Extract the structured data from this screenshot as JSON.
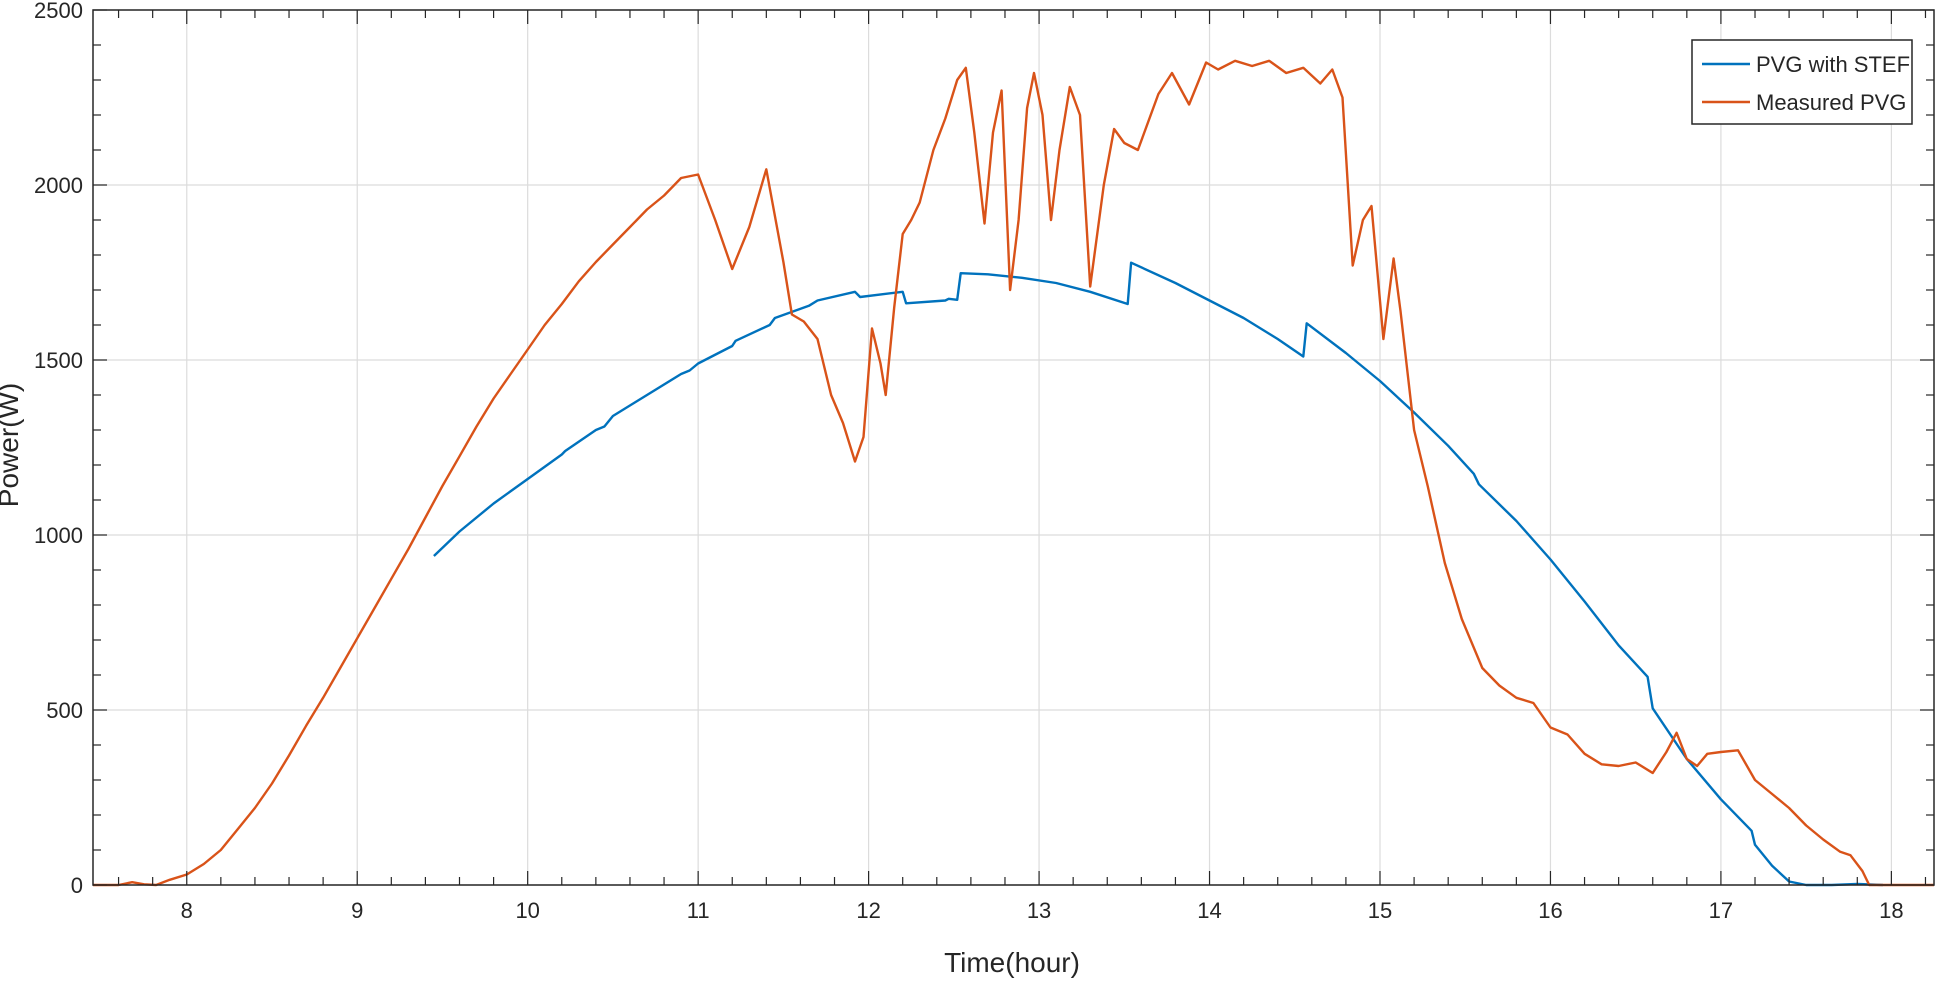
{
  "chart_data": {
    "type": "line",
    "xlabel": "Time(hour)",
    "ylabel": "Power(W)",
    "xlim": [
      7.45,
      18.25
    ],
    "ylim": [
      0,
      2500
    ],
    "xticks": [
      8,
      9,
      10,
      11,
      12,
      13,
      14,
      15,
      16,
      17,
      18
    ],
    "yticks": [
      0,
      500,
      1000,
      1500,
      2000,
      2500
    ],
    "grid": true,
    "legend_position": "top-right",
    "series": [
      {
        "name": "PVG with STEF",
        "color": "#0072BD",
        "points": [
          [
            9.45,
            940
          ],
          [
            9.6,
            1010
          ],
          [
            9.8,
            1090
          ],
          [
            10.0,
            1160
          ],
          [
            10.2,
            1230
          ],
          [
            10.22,
            1240
          ],
          [
            10.4,
            1300
          ],
          [
            10.45,
            1310
          ],
          [
            10.5,
            1340
          ],
          [
            10.7,
            1400
          ],
          [
            10.9,
            1460
          ],
          [
            10.95,
            1470
          ],
          [
            11.0,
            1490
          ],
          [
            11.2,
            1540
          ],
          [
            11.22,
            1555
          ],
          [
            11.42,
            1600
          ],
          [
            11.45,
            1620
          ],
          [
            11.65,
            1655
          ],
          [
            11.7,
            1670
          ],
          [
            11.92,
            1695
          ],
          [
            11.95,
            1680
          ],
          [
            12.2,
            1695
          ],
          [
            12.22,
            1662
          ],
          [
            12.45,
            1670
          ],
          [
            12.47,
            1675
          ],
          [
            12.52,
            1672
          ],
          [
            12.54,
            1748
          ],
          [
            12.7,
            1745
          ],
          [
            12.9,
            1735
          ],
          [
            13.1,
            1720
          ],
          [
            13.3,
            1695
          ],
          [
            13.52,
            1660
          ],
          [
            13.54,
            1778
          ],
          [
            13.8,
            1720
          ],
          [
            14.0,
            1670
          ],
          [
            14.2,
            1620
          ],
          [
            14.4,
            1560
          ],
          [
            14.55,
            1510
          ],
          [
            14.57,
            1605
          ],
          [
            14.8,
            1520
          ],
          [
            15.0,
            1440
          ],
          [
            15.2,
            1350
          ],
          [
            15.4,
            1255
          ],
          [
            15.55,
            1175
          ],
          [
            15.58,
            1145
          ],
          [
            15.8,
            1040
          ],
          [
            16.0,
            930
          ],
          [
            16.2,
            810
          ],
          [
            16.4,
            685
          ],
          [
            16.57,
            595
          ],
          [
            16.6,
            505
          ],
          [
            16.8,
            360
          ],
          [
            17.0,
            245
          ],
          [
            17.18,
            155
          ],
          [
            17.2,
            115
          ],
          [
            17.3,
            55
          ],
          [
            17.4,
            10
          ],
          [
            17.5,
            0
          ],
          [
            17.65,
            0
          ],
          [
            17.8,
            3
          ],
          [
            17.95,
            0
          ]
        ]
      },
      {
        "name": "Measured PVG",
        "color": "#D95319",
        "points": [
          [
            7.45,
            0
          ],
          [
            7.6,
            0
          ],
          [
            7.68,
            8
          ],
          [
            7.75,
            2
          ],
          [
            7.82,
            0
          ],
          [
            7.9,
            15
          ],
          [
            8.0,
            30
          ],
          [
            8.1,
            60
          ],
          [
            8.2,
            100
          ],
          [
            8.3,
            160
          ],
          [
            8.4,
            220
          ],
          [
            8.5,
            290
          ],
          [
            8.6,
            370
          ],
          [
            8.7,
            455
          ],
          [
            8.8,
            535
          ],
          [
            8.9,
            620
          ],
          [
            9.0,
            705
          ],
          [
            9.1,
            790
          ],
          [
            9.2,
            875
          ],
          [
            9.3,
            960
          ],
          [
            9.4,
            1050
          ],
          [
            9.5,
            1140
          ],
          [
            9.6,
            1225
          ],
          [
            9.7,
            1310
          ],
          [
            9.8,
            1390
          ],
          [
            9.9,
            1460
          ],
          [
            10.0,
            1530
          ],
          [
            10.1,
            1600
          ],
          [
            10.2,
            1660
          ],
          [
            10.3,
            1725
          ],
          [
            10.4,
            1780
          ],
          [
            10.5,
            1830
          ],
          [
            10.6,
            1880
          ],
          [
            10.7,
            1930
          ],
          [
            10.8,
            1970
          ],
          [
            10.9,
            2020
          ],
          [
            11.0,
            2030
          ],
          [
            11.1,
            1900
          ],
          [
            11.2,
            1760
          ],
          [
            11.3,
            1880
          ],
          [
            11.4,
            2045
          ],
          [
            11.5,
            1780
          ],
          [
            11.55,
            1630
          ],
          [
            11.62,
            1610
          ],
          [
            11.7,
            1560
          ],
          [
            11.78,
            1400
          ],
          [
            11.85,
            1320
          ],
          [
            11.92,
            1210
          ],
          [
            11.97,
            1280
          ],
          [
            12.02,
            1590
          ],
          [
            12.07,
            1490
          ],
          [
            12.1,
            1400
          ],
          [
            12.15,
            1650
          ],
          [
            12.2,
            1860
          ],
          [
            12.25,
            1900
          ],
          [
            12.3,
            1950
          ],
          [
            12.38,
            2100
          ],
          [
            12.45,
            2190
          ],
          [
            12.52,
            2300
          ],
          [
            12.57,
            2335
          ],
          [
            12.62,
            2150
          ],
          [
            12.68,
            1890
          ],
          [
            12.73,
            2150
          ],
          [
            12.78,
            2270
          ],
          [
            12.83,
            1700
          ],
          [
            12.88,
            1900
          ],
          [
            12.93,
            2220
          ],
          [
            12.97,
            2320
          ],
          [
            13.02,
            2200
          ],
          [
            13.07,
            1900
          ],
          [
            13.12,
            2100
          ],
          [
            13.18,
            2280
          ],
          [
            13.24,
            2200
          ],
          [
            13.3,
            1710
          ],
          [
            13.38,
            2000
          ],
          [
            13.44,
            2160
          ],
          [
            13.5,
            2120
          ],
          [
            13.58,
            2100
          ],
          [
            13.7,
            2260
          ],
          [
            13.78,
            2320
          ],
          [
            13.88,
            2230
          ],
          [
            13.98,
            2350
          ],
          [
            14.05,
            2330
          ],
          [
            14.15,
            2355
          ],
          [
            14.25,
            2340
          ],
          [
            14.35,
            2355
          ],
          [
            14.45,
            2320
          ],
          [
            14.55,
            2335
          ],
          [
            14.65,
            2290
          ],
          [
            14.72,
            2330
          ],
          [
            14.78,
            2250
          ],
          [
            14.84,
            1770
          ],
          [
            14.9,
            1900
          ],
          [
            14.95,
            1940
          ],
          [
            15.02,
            1560
          ],
          [
            15.08,
            1790
          ],
          [
            15.12,
            1640
          ],
          [
            15.2,
            1300
          ],
          [
            15.28,
            1140
          ],
          [
            15.38,
            920
          ],
          [
            15.48,
            760
          ],
          [
            15.6,
            620
          ],
          [
            15.7,
            570
          ],
          [
            15.8,
            535
          ],
          [
            15.9,
            520
          ],
          [
            16.0,
            450
          ],
          [
            16.1,
            430
          ],
          [
            16.2,
            375
          ],
          [
            16.3,
            345
          ],
          [
            16.4,
            340
          ],
          [
            16.5,
            350
          ],
          [
            16.6,
            320
          ],
          [
            16.68,
            380
          ],
          [
            16.74,
            435
          ],
          [
            16.8,
            360
          ],
          [
            16.86,
            340
          ],
          [
            16.92,
            375
          ],
          [
            17.0,
            380
          ],
          [
            17.1,
            385
          ],
          [
            17.2,
            300
          ],
          [
            17.3,
            260
          ],
          [
            17.4,
            220
          ],
          [
            17.5,
            170
          ],
          [
            17.6,
            130
          ],
          [
            17.7,
            95
          ],
          [
            17.76,
            85
          ],
          [
            17.83,
            40
          ],
          [
            17.87,
            0
          ],
          [
            18.0,
            0
          ],
          [
            18.25,
            0
          ]
        ]
      }
    ]
  }
}
